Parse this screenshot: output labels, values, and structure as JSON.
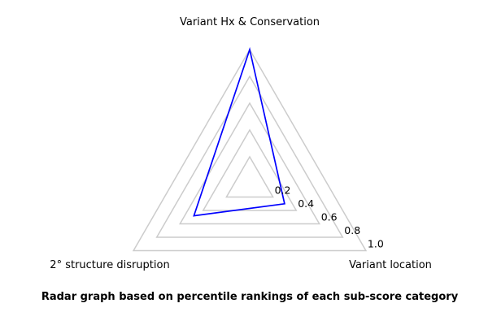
{
  "chart_data": {
    "type": "radar",
    "title": "",
    "caption": "Radar graph based on percentile rankings of each sub-score category",
    "axes": [
      "Variant Hx & Conservation",
      "Variant location",
      "2° structure disruption"
    ],
    "rings": [
      0.2,
      0.4,
      0.6,
      0.8,
      1.0
    ],
    "ring_labels": [
      "0.2",
      "0.4",
      "0.6",
      "0.8",
      "1.0"
    ],
    "rlim": [
      0,
      1.0
    ],
    "grid_color": "#cccccc",
    "series": [
      {
        "values": [
          1.0,
          0.3,
          0.48
        ],
        "color": "#0000ff"
      }
    ]
  }
}
